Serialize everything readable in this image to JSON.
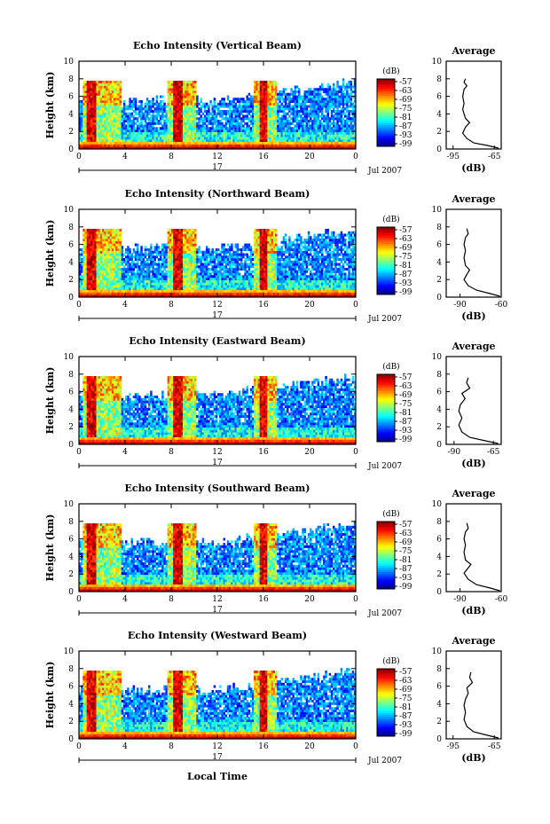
{
  "figure": {
    "xlabel": "Local Time",
    "date_label": "Jul 2007",
    "day_label": "17",
    "side_title": "Average",
    "cbar_unit": "(dB)",
    "side_xlabel": "(dB)"
  },
  "chart_data": [
    {
      "type": "heatmap",
      "title": "Echo Intensity (Vertical Beam)",
      "ylabel": "Height (km)",
      "xlabel": "Local Time",
      "x_ticks": [
        "0",
        "4",
        "8",
        "12",
        "16",
        "20",
        "0"
      ],
      "y_ticks": [
        "0",
        "2",
        "4",
        "6",
        "8",
        "10"
      ],
      "xlim": [
        0,
        24
      ],
      "ylim": [
        0,
        10
      ],
      "colorbar": {
        "label": "(dB)",
        "ticks": [
          "-57",
          "-63",
          "-69",
          "-75",
          "-81",
          "-87",
          "-93",
          "-99"
        ]
      },
      "profile": {
        "title": "Average",
        "xlabel": "(dB)",
        "x_ticks": [
          "-95",
          "-65"
        ],
        "xlim": [
          -100,
          -60
        ],
        "ylim": [
          0,
          10
        ],
        "points": [
          [
            -62,
            0.1
          ],
          [
            -70,
            0.4
          ],
          [
            -80,
            0.7
          ],
          [
            -85,
            1.2
          ],
          [
            -88,
            1.8
          ],
          [
            -86,
            2.5
          ],
          [
            -83,
            3.0
          ],
          [
            -86,
            3.5
          ],
          [
            -88,
            4.5
          ],
          [
            -87,
            5.2
          ],
          [
            -88,
            6.0
          ],
          [
            -87,
            6.8
          ],
          [
            -85,
            7.2
          ],
          [
            -87,
            7.6
          ],
          [
            -86,
            8.0
          ]
        ]
      }
    },
    {
      "type": "heatmap",
      "title": "Echo Intensity (Northward Beam)",
      "ylabel": "Height (km)",
      "xlabel": "Local Time",
      "x_ticks": [
        "0",
        "4",
        "8",
        "12",
        "16",
        "20",
        "0"
      ],
      "y_ticks": [
        "0",
        "2",
        "4",
        "6",
        "8",
        "10"
      ],
      "xlim": [
        0,
        24
      ],
      "ylim": [
        0,
        10
      ],
      "colorbar": {
        "label": "(dB)",
        "ticks": [
          "-57",
          "-63",
          "-69",
          "-75",
          "-81",
          "-87",
          "-93",
          "-99"
        ]
      },
      "profile": {
        "title": "Average",
        "xlabel": "(dB)",
        "x_ticks": [
          "-90",
          "-60"
        ],
        "xlim": [
          -100,
          -60
        ],
        "ylim": [
          0,
          10
        ],
        "points": [
          [
            -61,
            0.1
          ],
          [
            -68,
            0.4
          ],
          [
            -78,
            0.8
          ],
          [
            -84,
            1.3
          ],
          [
            -87,
            2.0
          ],
          [
            -85,
            2.6
          ],
          [
            -83,
            3.1
          ],
          [
            -86,
            3.6
          ],
          [
            -87,
            4.5
          ],
          [
            -86,
            5.3
          ],
          [
            -87,
            6.0
          ],
          [
            -86,
            6.8
          ],
          [
            -84,
            7.2
          ],
          [
            -85,
            7.8
          ]
        ]
      }
    },
    {
      "type": "heatmap",
      "title": "Echo Intensity (Eastward Beam)",
      "ylabel": "Height (km)",
      "xlabel": "Local Time",
      "x_ticks": [
        "0",
        "4",
        "8",
        "12",
        "16",
        "20",
        "0"
      ],
      "y_ticks": [
        "0",
        "2",
        "4",
        "6",
        "8",
        "10"
      ],
      "xlim": [
        0,
        24
      ],
      "ylim": [
        0,
        10
      ],
      "colorbar": {
        "label": "(dB)",
        "ticks": [
          "-57",
          "-63",
          "-69",
          "-75",
          "-81",
          "-87",
          "-93",
          "-99"
        ]
      },
      "profile": {
        "title": "Average",
        "xlabel": "(dB)",
        "x_ticks": [
          "-90",
          "-65"
        ],
        "xlim": [
          -95,
          -60
        ],
        "ylim": [
          0,
          10
        ],
        "points": [
          [
            -62,
            0.1
          ],
          [
            -70,
            0.4
          ],
          [
            -80,
            0.8
          ],
          [
            -85,
            1.4
          ],
          [
            -87,
            2.2
          ],
          [
            -85,
            3.0
          ],
          [
            -87,
            3.8
          ],
          [
            -86,
            4.5
          ],
          [
            -83,
            5.2
          ],
          [
            -85,
            5.8
          ],
          [
            -80,
            6.4
          ],
          [
            -82,
            7.0
          ],
          [
            -81,
            7.6
          ]
        ]
      }
    },
    {
      "type": "heatmap",
      "title": "Echo Intensity (Southward Beam)",
      "ylabel": "Height (km)",
      "xlabel": "Local Time",
      "x_ticks": [
        "0",
        "4",
        "8",
        "12",
        "16",
        "20",
        "0"
      ],
      "y_ticks": [
        "0",
        "2",
        "4",
        "6",
        "8",
        "10"
      ],
      "xlim": [
        0,
        24
      ],
      "ylim": [
        0,
        10
      ],
      "colorbar": {
        "label": "(dB)",
        "ticks": [
          "-57",
          "-63",
          "-69",
          "-75",
          "-81",
          "-87",
          "-93",
          "-99"
        ]
      },
      "profile": {
        "title": "Average",
        "xlabel": "(dB)",
        "x_ticks": [
          "-90",
          "-60"
        ],
        "xlim": [
          -100,
          -60
        ],
        "ylim": [
          0,
          10
        ],
        "points": [
          [
            -61,
            0.1
          ],
          [
            -68,
            0.4
          ],
          [
            -78,
            0.8
          ],
          [
            -84,
            1.4
          ],
          [
            -87,
            2.1
          ],
          [
            -84,
            2.7
          ],
          [
            -82,
            3.1
          ],
          [
            -86,
            3.6
          ],
          [
            -87,
            4.5
          ],
          [
            -86,
            5.3
          ],
          [
            -87,
            6.0
          ],
          [
            -86,
            6.8
          ],
          [
            -84,
            7.2
          ],
          [
            -85,
            7.8
          ]
        ]
      }
    },
    {
      "type": "heatmap",
      "title": "Echo Intensity (Westward Beam)",
      "ylabel": "Height (km)",
      "xlabel": "Local Time",
      "x_ticks": [
        "0",
        "4",
        "8",
        "12",
        "16",
        "20",
        "0"
      ],
      "y_ticks": [
        "0",
        "2",
        "4",
        "6",
        "8",
        "10"
      ],
      "xlim": [
        0,
        24
      ],
      "ylim": [
        0,
        10
      ],
      "colorbar": {
        "label": "(dB)",
        "ticks": [
          "-57",
          "-63",
          "-69",
          "-75",
          "-81",
          "-87",
          "-93",
          "-99"
        ]
      },
      "profile": {
        "title": "Average",
        "xlabel": "(dB)",
        "x_ticks": [
          "-95",
          "-65"
        ],
        "xlim": [
          -100,
          -60
        ],
        "ylim": [
          0,
          10
        ],
        "points": [
          [
            -62,
            0.1
          ],
          [
            -70,
            0.4
          ],
          [
            -80,
            0.8
          ],
          [
            -85,
            1.4
          ],
          [
            -87,
            2.2
          ],
          [
            -86,
            3.0
          ],
          [
            -87,
            3.8
          ],
          [
            -86,
            4.5
          ],
          [
            -84,
            5.2
          ],
          [
            -85,
            5.8
          ],
          [
            -81,
            6.4
          ],
          [
            -83,
            7.0
          ],
          [
            -82,
            7.6
          ]
        ]
      }
    }
  ]
}
